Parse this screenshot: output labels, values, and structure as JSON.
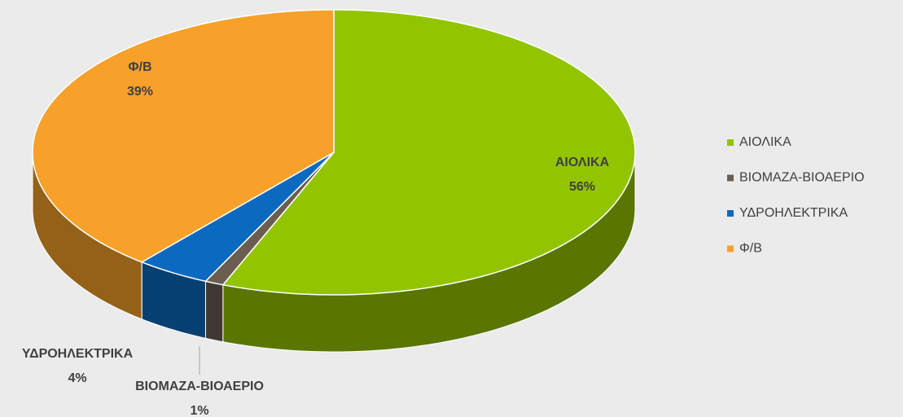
{
  "chart_data": {
    "type": "pie3d",
    "categories": [
      "ΑΙΟΛΙΚΑ",
      "ΒΙΟΜΑΖΑ-ΒΙΟΑΕΡΙΟ",
      "ΥΔΡΟΗΛΕΚΤΡΙΚΑ",
      "Φ/Β"
    ],
    "values": [
      56,
      1,
      4,
      39
    ],
    "value_labels": [
      "56%",
      "1%",
      "4%",
      "39%"
    ],
    "colors": [
      "#92c500",
      "#6b5e51",
      "#0b6ac0",
      "#f7a12a"
    ],
    "legend": "right"
  }
}
